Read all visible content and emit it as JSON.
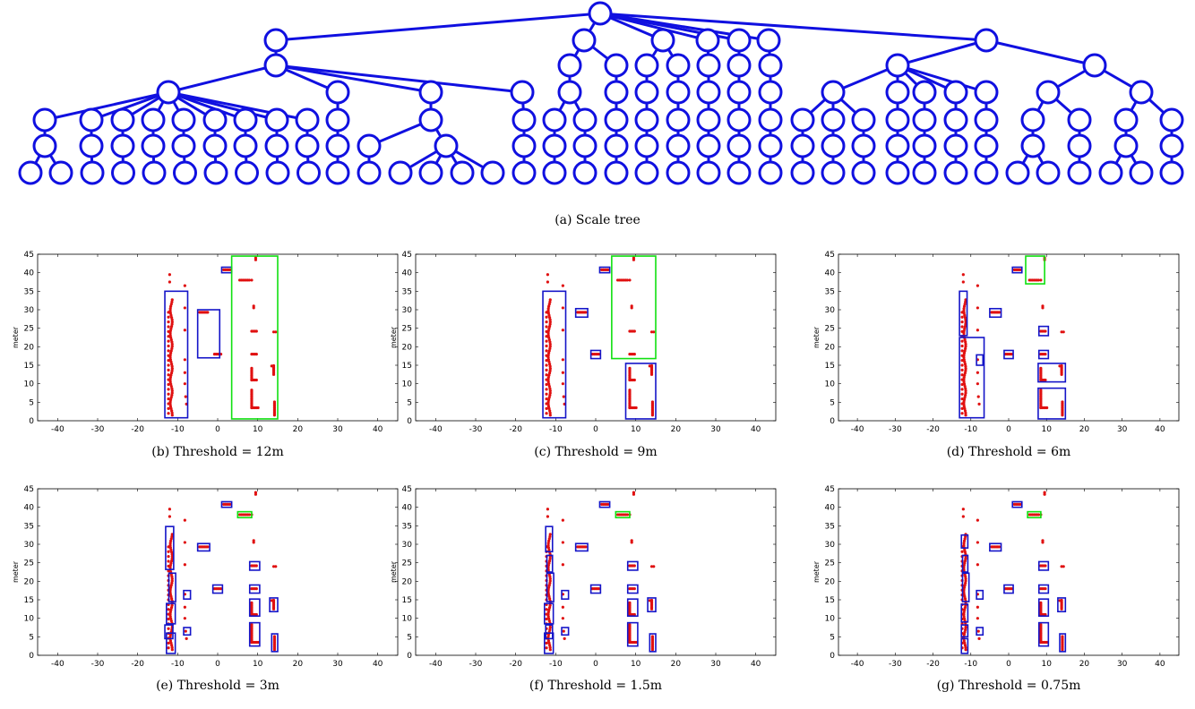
{
  "figure": {
    "colors": {
      "tree": "#1010e0",
      "points": "#e01010",
      "box": "#1414c8",
      "highlight": "#10e010"
    },
    "tree_caption": "(a)  Scale tree"
  },
  "tree": {
    "levels": 7,
    "edges": [
      [
        0,
        1
      ],
      [
        0,
        2
      ],
      [
        0,
        3
      ],
      [
        0,
        4
      ],
      [
        0,
        5
      ],
      [
        0,
        6
      ],
      [
        0,
        7
      ],
      [
        0,
        8
      ],
      [
        0,
        9
      ]
    ]
  },
  "chart_data": [
    {
      "type": "scatter",
      "caption": "(b)  Threshold = 12m",
      "xlim": [
        -45,
        45
      ],
      "ylim": [
        0,
        45
      ],
      "xticks": [
        -40,
        -30,
        -20,
        -10,
        0,
        10,
        20,
        30,
        40
      ],
      "yticks": [
        0,
        5,
        10,
        15,
        20,
        25,
        30,
        35,
        40,
        45
      ],
      "ylabel": "meter",
      "boxes": [
        [
          -13.2,
          0.8,
          -7.5,
          35
        ],
        [
          -5,
          17,
          0.5,
          30
        ],
        [
          1,
          40,
          3.5,
          41.5
        ]
      ],
      "highlight_boxes": [
        [
          3.5,
          0.5,
          15,
          44.5
        ]
      ]
    },
    {
      "type": "scatter",
      "caption": "(c)  Threshold = 9m",
      "xlim": [
        -45,
        45
      ],
      "ylim": [
        0,
        45
      ],
      "xticks": [
        -40,
        -30,
        -20,
        -10,
        0,
        10,
        20,
        30,
        40
      ],
      "yticks": [
        0,
        5,
        10,
        15,
        20,
        25,
        30,
        35,
        40,
        45
      ],
      "ylabel": "meter",
      "boxes": [
        [
          -13.2,
          0.8,
          -7.5,
          35
        ],
        [
          -5,
          28,
          -2,
          30.3
        ],
        [
          -1.2,
          16.8,
          1.2,
          19
        ],
        [
          1,
          40,
          3.5,
          41.5
        ],
        [
          7.5,
          0.5,
          15,
          15.5
        ]
      ],
      "highlight_boxes": [
        [
          4,
          16.8,
          15,
          44.5
        ]
      ]
    },
    {
      "type": "scatter",
      "caption": "(d)  Threshold = 6m",
      "xlim": [
        -45,
        45
      ],
      "ylim": [
        0,
        45
      ],
      "xticks": [
        -40,
        -30,
        -20,
        -10,
        0,
        10,
        20,
        30,
        40
      ],
      "yticks": [
        0,
        5,
        10,
        15,
        20,
        25,
        30,
        35,
        40,
        45
      ],
      "ylabel": "meter",
      "boxes": [
        [
          -13,
          0.8,
          -6.5,
          22.5
        ],
        [
          -13,
          23,
          -11,
          35
        ],
        [
          -8.5,
          15,
          -6.8,
          17.8
        ],
        [
          -5,
          28,
          -2,
          30.3
        ],
        [
          -1.2,
          16.8,
          1.2,
          19
        ],
        [
          1,
          40,
          3.5,
          41.5
        ],
        [
          8,
          23,
          10.5,
          25.5
        ],
        [
          8,
          16.8,
          10.5,
          19
        ],
        [
          7.8,
          10.5,
          15,
          15.5
        ],
        [
          7.8,
          0.5,
          15,
          8.8
        ]
      ],
      "highlight_boxes": [
        [
          4.5,
          37,
          9.5,
          44.5
        ]
      ]
    },
    {
      "type": "scatter",
      "caption": "(e)  Threshold = 3m",
      "xlim": [
        -45,
        45
      ],
      "ylim": [
        0,
        45
      ],
      "xticks": [
        -40,
        -30,
        -20,
        -10,
        0,
        10,
        20,
        30,
        40
      ],
      "yticks": [
        0,
        5,
        10,
        15,
        20,
        25,
        30,
        35,
        40,
        45
      ],
      "ylabel": "meter",
      "boxes": [
        [
          -13,
          23.2,
          -11,
          34.8
        ],
        [
          -12.2,
          14.5,
          -10.5,
          22.2
        ],
        [
          -12.8,
          8.5,
          -10.6,
          14
        ],
        [
          -12.8,
          0.5,
          -10.6,
          6
        ],
        [
          -13.2,
          4.5,
          -11.2,
          8.2
        ],
        [
          -8.5,
          15.2,
          -6.8,
          17.5
        ],
        [
          -8.5,
          5.5,
          -6.8,
          7.5
        ],
        [
          -5,
          28.2,
          -2,
          30.2
        ],
        [
          -1.2,
          16.8,
          1.2,
          19
        ],
        [
          1,
          40,
          3.5,
          41.5
        ],
        [
          8,
          23,
          10.5,
          25.3
        ],
        [
          8,
          16.8,
          10.5,
          19
        ],
        [
          8,
          10.6,
          10.5,
          15.2
        ],
        [
          8,
          2.5,
          10.5,
          8.8
        ],
        [
          13,
          11.8,
          15,
          15.5
        ],
        [
          13.5,
          1,
          15,
          5.8
        ]
      ],
      "highlight_boxes": [
        [
          5,
          37.2,
          8.5,
          38.8
        ]
      ]
    },
    {
      "type": "scatter",
      "caption": "(f)  Threshold = 1.5m",
      "xlim": [
        -45,
        45
      ],
      "ylim": [
        0,
        45
      ],
      "xticks": [
        -40,
        -30,
        -20,
        -10,
        0,
        10,
        20,
        30,
        40
      ],
      "yticks": [
        0,
        5,
        10,
        15,
        20,
        25,
        30,
        35,
        40,
        45
      ],
      "ylabel": "meter",
      "boxes": [
        [
          -12.5,
          28,
          -10.8,
          34.8
        ],
        [
          -12.2,
          22.5,
          -10.8,
          27
        ],
        [
          -12.2,
          14.5,
          -10.5,
          22.2
        ],
        [
          -12.8,
          8.5,
          -10.6,
          14
        ],
        [
          -12.8,
          0.5,
          -10.6,
          6
        ],
        [
          -12.5,
          4.5,
          -10.8,
          8.2
        ],
        [
          -8.5,
          15.2,
          -6.8,
          17.5
        ],
        [
          -8.5,
          5.5,
          -6.8,
          7.5
        ],
        [
          -5,
          28.2,
          -2,
          30.2
        ],
        [
          -1.2,
          16.8,
          1.2,
          19
        ],
        [
          1,
          40,
          3.5,
          41.5
        ],
        [
          8,
          23,
          10.5,
          25.3
        ],
        [
          8,
          16.8,
          10.5,
          19
        ],
        [
          8,
          10.6,
          10.5,
          15.2
        ],
        [
          8,
          2.5,
          10.5,
          8.8
        ],
        [
          13,
          11.8,
          15,
          15.5
        ],
        [
          13.5,
          1,
          15,
          5.8
        ]
      ],
      "highlight_boxes": [
        [
          5,
          37.2,
          8.5,
          38.8
        ]
      ]
    },
    {
      "type": "scatter",
      "caption": "(g)  Threshold = 0.75m",
      "xlim": [
        -45,
        45
      ],
      "ylim": [
        0,
        45
      ],
      "xticks": [
        -40,
        -30,
        -20,
        -10,
        0,
        10,
        20,
        30,
        40
      ],
      "yticks": [
        0,
        5,
        10,
        15,
        20,
        25,
        30,
        35,
        40,
        45
      ],
      "ylabel": "meter",
      "boxes": [
        [
          -12.5,
          29,
          -10.8,
          32.5
        ],
        [
          -12.2,
          22.5,
          -10.8,
          27
        ],
        [
          -12.2,
          14.5,
          -10.5,
          22.2
        ],
        [
          -12.5,
          9,
          -10.8,
          13.8
        ],
        [
          -12.5,
          5,
          -10.8,
          8.2
        ],
        [
          -12.5,
          0.5,
          -10.8,
          4.5
        ],
        [
          -8.5,
          15.2,
          -6.8,
          17.5
        ],
        [
          -8.5,
          5.5,
          -6.8,
          7.5
        ],
        [
          -5,
          28.2,
          -2,
          30.2
        ],
        [
          -1.2,
          16.8,
          1.2,
          19
        ],
        [
          1,
          40,
          3.5,
          41.5
        ],
        [
          8,
          23,
          10.5,
          25.3
        ],
        [
          8,
          16.8,
          10.5,
          19
        ],
        [
          8,
          10.6,
          10.5,
          15.2
        ],
        [
          8,
          2.5,
          10.5,
          8.8
        ],
        [
          13,
          11.8,
          15,
          15.5
        ],
        [
          13.5,
          1,
          15,
          5.8
        ]
      ],
      "highlight_boxes": [
        [
          5,
          37.2,
          8.5,
          38.8
        ]
      ]
    }
  ]
}
